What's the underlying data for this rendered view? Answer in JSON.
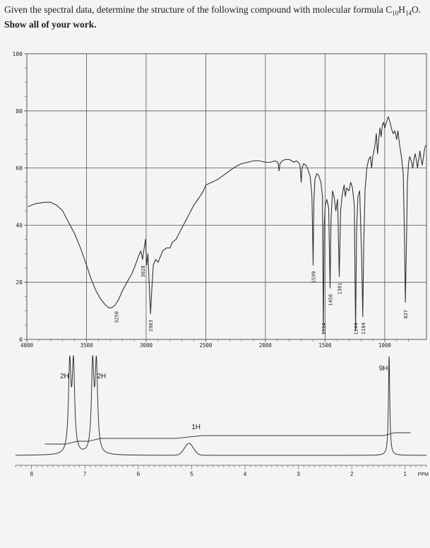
{
  "problem": {
    "text_start": "Given the spectral data, determine the structure of the following compound with molecular formula",
    "formula_parts": [
      {
        "t": "C",
        "sub": false
      },
      {
        "t": "10",
        "sub": true
      },
      {
        "t": "H",
        "sub": false
      },
      {
        "t": "14",
        "sub": true
      },
      {
        "t": "O.",
        "sub": false
      }
    ],
    "bold_text": "Show all of your work."
  },
  "colors": {
    "paper": "#f4f4f2",
    "grid": "#555555",
    "trace": "#333333",
    "text": "#222222"
  },
  "chart_data": [
    {
      "type": "line",
      "id": "ir",
      "xlim": [
        4000,
        650
      ],
      "ylim": [
        0,
        100
      ],
      "x_ticks": [
        {
          "v": 4000,
          "label": "4000"
        },
        {
          "v": 3500,
          "label": "3500"
        },
        {
          "v": 3000,
          "label": "3000"
        },
        {
          "v": 2500,
          "label": "2500"
        },
        {
          "v": 2000,
          "label": "2000"
        },
        {
          "v": 1500,
          "label": "1500"
        },
        {
          "v": 1000,
          "label": "1000"
        }
      ],
      "y_ticks": [
        {
          "v": 0,
          "label": "0"
        },
        {
          "v": 20,
          "label": "20"
        },
        {
          "v": 40,
          "label": "40"
        },
        {
          "v": 60,
          "label": "60"
        },
        {
          "v": 80,
          "label": "80"
        },
        {
          "v": 100,
          "label": "100"
        }
      ],
      "grid": true,
      "peak_labels": [
        "3250",
        "3028",
        "2963",
        "1599",
        "1514",
        "1458",
        "1381",
        "1244",
        "1184",
        "827"
      ],
      "points": [
        [
          3990,
          46.5
        ],
        [
          3930,
          47.5
        ],
        [
          3850,
          48
        ],
        [
          3800,
          48
        ],
        [
          3750,
          47
        ],
        [
          3700,
          45
        ],
        [
          3650,
          41
        ],
        [
          3600,
          37
        ],
        [
          3550,
          32
        ],
        [
          3500,
          26
        ],
        [
          3460,
          21
        ],
        [
          3420,
          17
        ],
        [
          3380,
          14
        ],
        [
          3340,
          12
        ],
        [
          3310,
          11
        ],
        [
          3285,
          11.2
        ],
        [
          3260,
          12
        ],
        [
          3230,
          14
        ],
        [
          3200,
          17
        ],
        [
          3160,
          20
        ],
        [
          3120,
          23
        ],
        [
          3090,
          26
        ],
        [
          3065,
          29
        ],
        [
          3045,
          31
        ],
        [
          3030,
          28
        ],
        [
          3020,
          31
        ],
        [
          3005,
          35
        ],
        [
          2995,
          26
        ],
        [
          2985,
          30
        ],
        [
          2975,
          20
        ],
        [
          2963,
          9
        ],
        [
          2952,
          18
        ],
        [
          2940,
          26
        ],
        [
          2920,
          28
        ],
        [
          2900,
          27
        ],
        [
          2880,
          29
        ],
        [
          2860,
          31
        ],
        [
          2830,
          32
        ],
        [
          2800,
          32
        ],
        [
          2780,
          34
        ],
        [
          2750,
          35
        ],
        [
          2700,
          39
        ],
        [
          2650,
          43
        ],
        [
          2600,
          47
        ],
        [
          2550,
          50
        ],
        [
          2520,
          52
        ],
        [
          2500,
          54
        ],
        [
          2450,
          55
        ],
        [
          2400,
          56
        ],
        [
          2350,
          57.5
        ],
        [
          2300,
          59
        ],
        [
          2250,
          60.5
        ],
        [
          2200,
          61.5
        ],
        [
          2150,
          62
        ],
        [
          2100,
          62.5
        ],
        [
          2050,
          62.5
        ],
        [
          2000,
          62
        ],
        [
          1960,
          62
        ],
        [
          1920,
          62.5
        ],
        [
          1895,
          62
        ],
        [
          1885,
          59
        ],
        [
          1878,
          61.5
        ],
        [
          1860,
          62.5
        ],
        [
          1830,
          63
        ],
        [
          1800,
          63
        ],
        [
          1780,
          62.5
        ],
        [
          1760,
          62
        ],
        [
          1740,
          62.5
        ],
        [
          1725,
          62
        ],
        [
          1710,
          61
        ],
        [
          1700,
          55
        ],
        [
          1693,
          60
        ],
        [
          1680,
          61.5
        ],
        [
          1660,
          61
        ],
        [
          1640,
          59
        ],
        [
          1625,
          57
        ],
        [
          1610,
          50
        ],
        [
          1600,
          26
        ],
        [
          1594,
          48
        ],
        [
          1585,
          56
        ],
        [
          1570,
          58
        ],
        [
          1555,
          57.5
        ],
        [
          1535,
          55
        ],
        [
          1522,
          50
        ],
        [
          1514,
          2
        ],
        [
          1507,
          40
        ],
        [
          1498,
          47
        ],
        [
          1485,
          49
        ],
        [
          1470,
          46
        ],
        [
          1458,
          18
        ],
        [
          1450,
          42
        ],
        [
          1438,
          52
        ],
        [
          1425,
          50
        ],
        [
          1410,
          45
        ],
        [
          1395,
          49
        ],
        [
          1381,
          22
        ],
        [
          1370,
          45
        ],
        [
          1355,
          51
        ],
        [
          1340,
          54
        ],
        [
          1330,
          50
        ],
        [
          1320,
          53
        ],
        [
          1300,
          52
        ],
        [
          1285,
          55
        ],
        [
          1270,
          53
        ],
        [
          1255,
          47
        ],
        [
          1244,
          3
        ],
        [
          1236,
          38
        ],
        [
          1225,
          50
        ],
        [
          1210,
          52
        ],
        [
          1194,
          30
        ],
        [
          1184,
          8
        ],
        [
          1176,
          32
        ],
        [
          1165,
          52
        ],
        [
          1150,
          60
        ],
        [
          1135,
          63
        ],
        [
          1120,
          64
        ],
        [
          1110,
          60
        ],
        [
          1100,
          64
        ],
        [
          1085,
          67
        ],
        [
          1070,
          72
        ],
        [
          1060,
          65
        ],
        [
          1050,
          70
        ],
        [
          1040,
          74
        ],
        [
          1030,
          71
        ],
        [
          1020,
          75
        ],
        [
          1010,
          76
        ],
        [
          1000,
          74
        ],
        [
          985,
          76
        ],
        [
          970,
          78
        ],
        [
          955,
          76
        ],
        [
          945,
          74
        ],
        [
          930,
          72
        ],
        [
          915,
          73
        ],
        [
          900,
          70
        ],
        [
          890,
          73
        ],
        [
          875,
          68
        ],
        [
          860,
          64
        ],
        [
          845,
          58
        ],
        [
          835,
          38
        ],
        [
          827,
          13
        ],
        [
          819,
          30
        ],
        [
          810,
          55
        ],
        [
          800,
          62
        ],
        [
          790,
          64
        ],
        [
          775,
          62
        ],
        [
          765,
          60
        ],
        [
          755,
          63
        ],
        [
          745,
          65
        ],
        [
          735,
          63
        ],
        [
          725,
          60
        ],
        [
          715,
          63
        ],
        [
          705,
          66
        ],
        [
          695,
          63
        ],
        [
          685,
          61
        ],
        [
          675,
          64
        ],
        [
          665,
          67
        ],
        [
          655,
          68
        ]
      ]
    },
    {
      "type": "line",
      "id": "nmr",
      "xlim": [
        8.3,
        0.6
      ],
      "x_ticks": [
        {
          "v": 8,
          "label": "8"
        },
        {
          "v": 7,
          "label": "7"
        },
        {
          "v": 6,
          "label": "6"
        },
        {
          "v": 5,
          "label": "5"
        },
        {
          "v": 4,
          "label": "4"
        },
        {
          "v": 3,
          "label": "3"
        },
        {
          "v": 2,
          "label": "2"
        },
        {
          "v": 1,
          "label": "1"
        }
      ],
      "unit": "PPM",
      "peaks": [
        {
          "shift": 7.25,
          "height": 0.92,
          "width": 0.028,
          "type": "doublet"
        },
        {
          "shift": 6.82,
          "height": 0.92,
          "width": 0.028,
          "type": "doublet"
        },
        {
          "shift": 5.05,
          "height": 0.12,
          "width": 0.12,
          "type": "broad"
        },
        {
          "shift": 1.3,
          "height": 1.0,
          "width": 0.015,
          "type": "singlet"
        }
      ],
      "integrals": [
        "2H",
        "2H",
        "1H",
        "9H"
      ]
    }
  ]
}
